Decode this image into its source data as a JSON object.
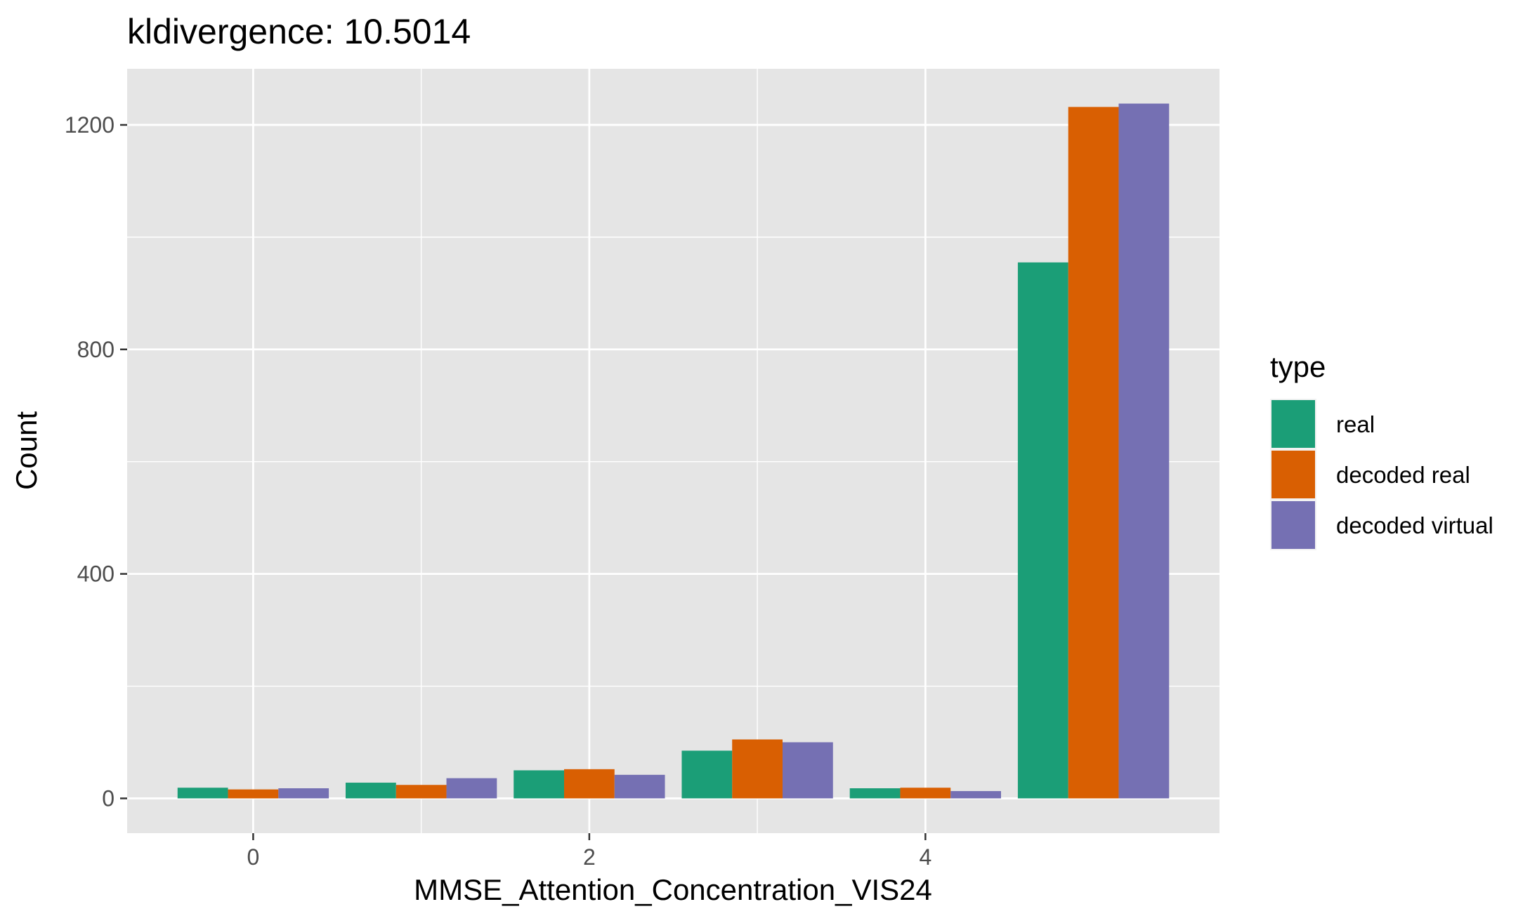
{
  "chart_data": {
    "type": "bar",
    "title": "kldivergence: 10.5014",
    "xlabel": "MMSE_Attention_Concentration_VIS24",
    "ylabel": "Count",
    "categories": [
      0,
      1,
      2,
      3,
      4,
      5
    ],
    "x_ticks": [
      0,
      2,
      4
    ],
    "y_ticks": [
      0,
      400,
      800,
      1200
    ],
    "xlim": [
      -0.75,
      5.75
    ],
    "ylim": [
      -62,
      1300
    ],
    "grid": true,
    "legend": {
      "title": "type",
      "position": "right"
    },
    "series": [
      {
        "name": "real",
        "color": "#1b9e77",
        "values": [
          19,
          28,
          50,
          85,
          18,
          955
        ]
      },
      {
        "name": "decoded real",
        "color": "#d95f02",
        "values": [
          16,
          24,
          52,
          105,
          19,
          1232
        ]
      },
      {
        "name": "decoded virtual",
        "color": "#7570b3",
        "values": [
          18,
          36,
          42,
          100,
          13,
          1238
        ]
      }
    ]
  }
}
